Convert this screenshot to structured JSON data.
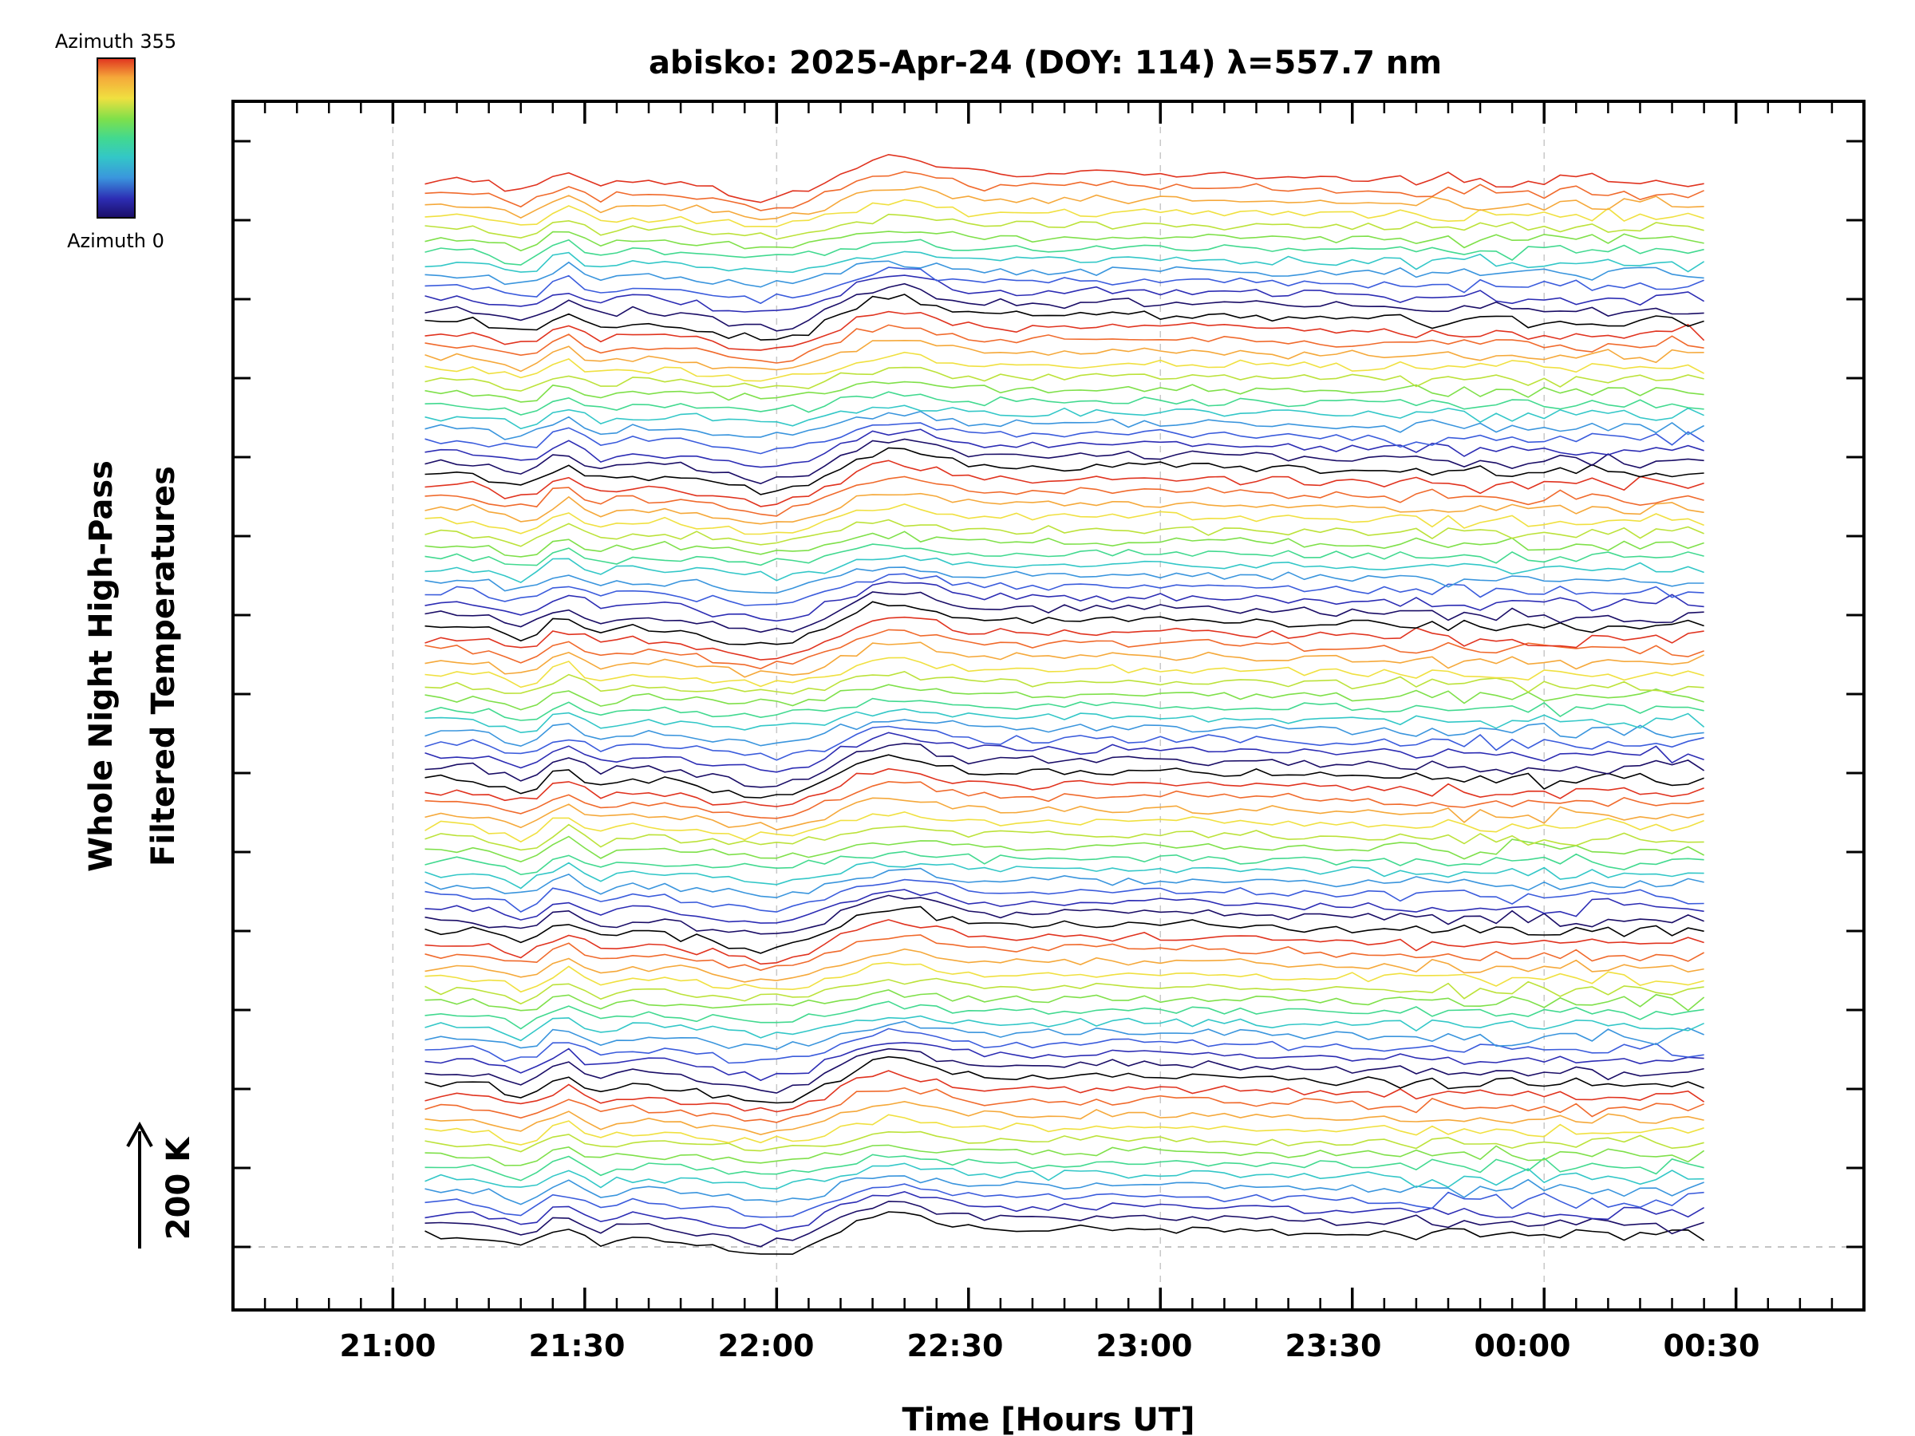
{
  "chart_data": {
    "type": "line",
    "title": "abisko: 2025-Apr-24 (DOY: 114) λ=557.7 nm",
    "xlabel": "Time [Hours UT]",
    "ylabel_line1": "Whole Night High-Pass",
    "ylabel_line2": "Filtered Temperatures",
    "scale_label": "200 K",
    "xlim": [
      "20:35",
      "00:50"
    ],
    "x_ticks": [
      "21:00",
      "21:30",
      "22:00",
      "22:30",
      "23:00",
      "23:30",
      "00:00",
      "00:30"
    ],
    "data_time_range": [
      "21:05",
      "00:25"
    ],
    "colorbar": {
      "top_label": "Azimuth 355",
      "bottom_label": "Azimuth 0",
      "colormap": "rainbow"
    },
    "azimuth_cycle_colors": [
      "#000000",
      "#1a0d66",
      "#2d2db4",
      "#3b5cdc",
      "#3a95dd",
      "#33c7c7",
      "#42d98f",
      "#7fe04a",
      "#bce23a",
      "#f0e040",
      "#f5a83a",
      "#f06a2c",
      "#e0331f"
    ],
    "num_azimuth_cycles": 7,
    "dominant_features": [
      {
        "time": "21:20",
        "description": "sharp dip"
      },
      {
        "time": "21:27",
        "description": "sharp peak"
      },
      {
        "time": "22:05",
        "description": "broad trough then rise"
      },
      {
        "time": "22:15",
        "description": "broad crest"
      }
    ],
    "grid": "dashed vertical lines at 21:00, 22:00, 23:00, 00:00",
    "legend": "none"
  }
}
